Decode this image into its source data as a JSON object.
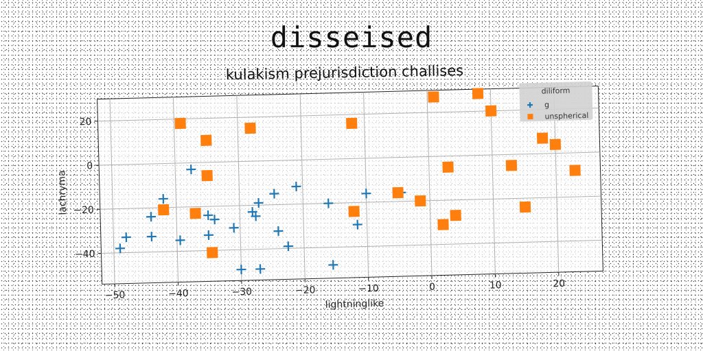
{
  "figure": {
    "title": "disseised",
    "subtitle": "kulakism prejurisdiction challises"
  },
  "chart_data": {
    "type": "scatter",
    "xlabel": "lightninglike",
    "ylabel": "lachryma",
    "xlim": [
      -52,
      27
    ],
    "ylim": [
      -54,
      30
    ],
    "xticks": [
      -50,
      -40,
      -30,
      -20,
      -10,
      0,
      10,
      20
    ],
    "yticks": [
      20,
      0,
      -20,
      -40
    ],
    "xtick_labels": [
      "−50",
      "−40",
      "−30",
      "−20",
      "−10",
      "0",
      "10",
      "20"
    ],
    "ytick_labels": [
      "20",
      "0",
      "−20",
      "−40"
    ],
    "grid": true,
    "legend": {
      "title": "diliform",
      "placement": "top-right"
    },
    "series": [
      {
        "name": "g",
        "marker": "plus",
        "color": "#1f77b4",
        "points": [
          [
            -37.5,
            -3
          ],
          [
            -42,
            -16
          ],
          [
            -44,
            -24
          ],
          [
            -44,
            -33
          ],
          [
            -48,
            -33
          ],
          [
            -49,
            -38
          ],
          [
            -39.5,
            -35
          ],
          [
            -35,
            -24
          ],
          [
            -34,
            -26
          ],
          [
            -35,
            -33
          ],
          [
            -31,
            -30
          ],
          [
            -27,
            -19
          ],
          [
            -28,
            -23
          ],
          [
            -27.5,
            -25
          ],
          [
            -24.5,
            -15
          ],
          [
            -24,
            -32
          ],
          [
            -22.5,
            -39
          ],
          [
            -21,
            -12
          ],
          [
            -30,
            -49
          ],
          [
            -27,
            -49
          ],
          [
            -16,
            -20
          ],
          [
            -15.5,
            -48
          ],
          [
            -11.5,
            -30
          ],
          [
            -10,
            -16
          ],
          [
            -4.5,
            -16
          ]
        ]
      },
      {
        "name": "unspherical",
        "marker": "square",
        "color": "#ff7f0e",
        "points": [
          [
            -39,
            18
          ],
          [
            -35,
            10
          ],
          [
            -28,
            15
          ],
          [
            -35,
            -6
          ],
          [
            -42,
            -21
          ],
          [
            -37,
            -23
          ],
          [
            -34.5,
            -41
          ],
          [
            -12,
            16
          ],
          [
            -12,
            -24
          ],
          [
            -5,
            -16
          ],
          [
            -1.5,
            -20
          ],
          [
            1,
            27
          ],
          [
            2,
            -31
          ],
          [
            3,
            -5
          ],
          [
            4,
            -27
          ],
          [
            8,
            28
          ],
          [
            10,
            20
          ],
          [
            13,
            -5
          ],
          [
            15,
            -24
          ],
          [
            18,
            7
          ],
          [
            20,
            4
          ],
          [
            23,
            -8
          ]
        ]
      }
    ]
  }
}
